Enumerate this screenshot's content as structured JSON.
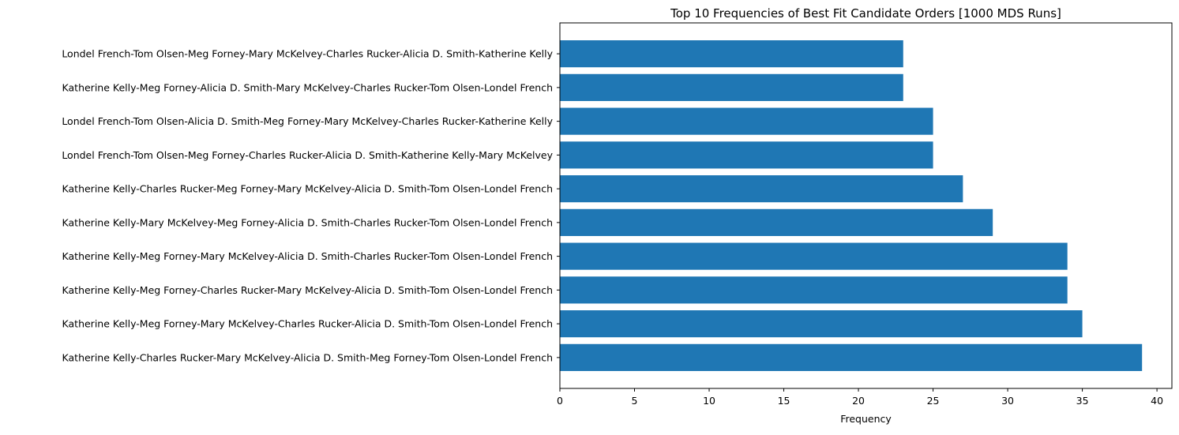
{
  "chart_data": {
    "type": "bar",
    "orientation": "horizontal",
    "title": "Top 10 Frequencies of Best Fit Candidate Orders [1000 MDS Runs]",
    "xlabel": "Frequency",
    "ylabel": "",
    "xlim": [
      0,
      41
    ],
    "xticks": [
      0,
      5,
      10,
      15,
      20,
      25,
      30,
      35,
      40
    ],
    "grid": false,
    "bar_color": "#1f77b4",
    "categories": [
      "Katherine Kelly-Charles Rucker-Mary McKelvey-Alicia D. Smith-Meg Forney-Tom Olsen-Londel French",
      "Katherine Kelly-Meg Forney-Mary McKelvey-Charles Rucker-Alicia D. Smith-Tom Olsen-Londel French",
      "Katherine Kelly-Meg Forney-Charles Rucker-Mary McKelvey-Alicia D. Smith-Tom Olsen-Londel French",
      "Katherine Kelly-Meg Forney-Mary McKelvey-Alicia D. Smith-Charles Rucker-Tom Olsen-Londel French",
      "Katherine Kelly-Mary McKelvey-Meg Forney-Alicia D. Smith-Charles Rucker-Tom Olsen-Londel French",
      "Katherine Kelly-Charles Rucker-Meg Forney-Mary McKelvey-Alicia D. Smith-Tom Olsen-Londel French",
      "Londel French-Tom Olsen-Meg Forney-Charles Rucker-Alicia D. Smith-Katherine Kelly-Mary McKelvey",
      "Londel French-Tom Olsen-Alicia D. Smith-Meg Forney-Mary McKelvey-Charles Rucker-Katherine Kelly",
      "Katherine Kelly-Meg Forney-Alicia D. Smith-Mary McKelvey-Charles Rucker-Tom Olsen-Londel French",
      "Londel French-Tom Olsen-Meg Forney-Mary McKelvey-Charles Rucker-Alicia D. Smith-Katherine Kelly"
    ],
    "values": [
      39,
      35,
      34,
      34,
      29,
      27,
      25,
      25,
      23,
      23
    ]
  }
}
